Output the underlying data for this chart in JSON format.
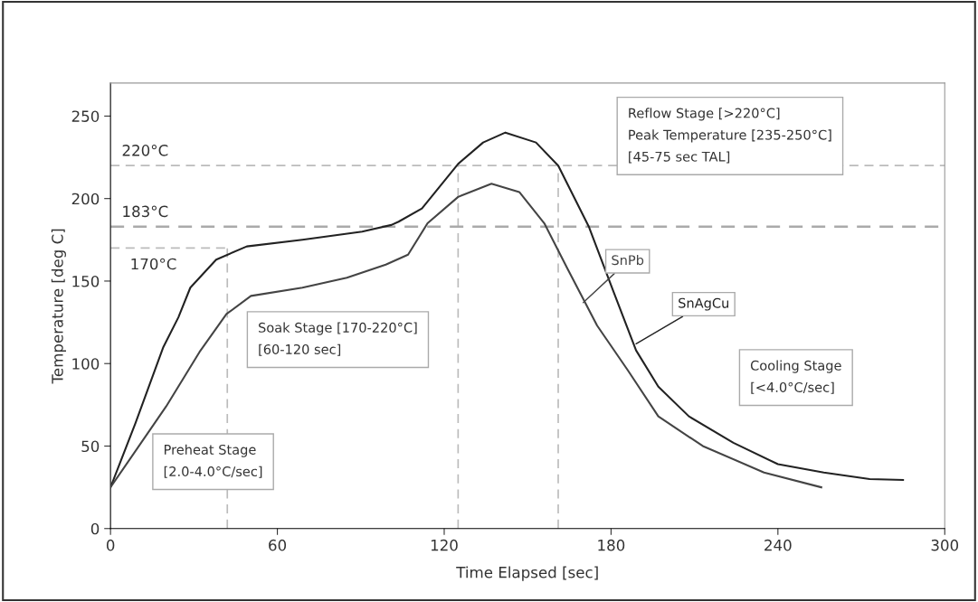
{
  "chart_data": {
    "type": "line",
    "xlabel": "Time Elapsed [sec]",
    "ylabel": "Temperature [deg C]",
    "xlim": [
      0,
      300
    ],
    "xticks": [
      0,
      60,
      120,
      180,
      240,
      300
    ],
    "ylim": [
      0,
      270
    ],
    "yticks": [
      0,
      50,
      100,
      150,
      200,
      250
    ],
    "grid": false,
    "legend": false,
    "marker": "none",
    "series": [
      {
        "name": "SnAgCu",
        "color": "#222222",
        "line_style": "solid",
        "x": [
          0,
          9,
          19,
          24.4,
          28.7,
          38,
          49,
          69,
          90.5,
          101,
          103.6,
          112,
          125,
          134,
          142,
          153,
          161,
          172,
          181,
          189,
          197,
          208,
          224,
          240,
          256.5,
          273,
          285
        ],
        "values": [
          25,
          64,
          110,
          128,
          146,
          163,
          171,
          175,
          180,
          184,
          186,
          194,
          221,
          234,
          240,
          234,
          220,
          183,
          143,
          108,
          86,
          68,
          52,
          39,
          34,
          30,
          29.5
        ]
      },
      {
        "name": "SnPb",
        "color": "#444444",
        "line_style": "solid",
        "x": [
          0,
          20,
          32,
          41.7,
          50.5,
          69,
          85,
          99,
          107,
          114,
          125,
          137,
          147,
          156,
          164.5,
          175,
          186,
          197,
          213,
          235,
          255.6
        ],
        "values": [
          25,
          74,
          107,
          130,
          141,
          146,
          152,
          160,
          166,
          185,
          201,
          209,
          204,
          185,
          157,
          123,
          96,
          68,
          50,
          34,
          25
        ]
      },
      {
        "color": "#bbbbbb",
        "line_style": "dashed",
        "x": [
          0,
          42
        ],
        "values": [
          170,
          170
        ]
      },
      {
        "color": "#bbbbbb",
        "line_style": "dashed",
        "x": [
          42,
          42
        ],
        "values": [
          0,
          170
        ]
      },
      {
        "color": "#bbbbbb",
        "line_style": "dashed",
        "x": [
          125,
          125
        ],
        "values": [
          0,
          220
        ]
      },
      {
        "color": "#bbbbbb",
        "line_style": "dashed",
        "x": [
          161,
          161
        ],
        "values": [
          0,
          220
        ]
      }
    ],
    "ref_lines": [
      {
        "axis": "y",
        "value": 220,
        "label": "220°C",
        "color": "#bbbbbb",
        "line_style": "dashed"
      },
      {
        "axis": "y",
        "value": 183,
        "label": "183°C",
        "color": "#aaaaaa",
        "line_style": "dashed"
      }
    ],
    "annotations": [
      "170°C",
      "Reflow Stage [>220°C]\nPeak Temperature [235-250°C]\n[45-75 sec TAL]",
      "Soak Stage [170-220°C]\n[60-120 sec]",
      "Preheat Stage\n[2.0-4.0°C/sec]",
      "Cooling Stage\n[<4.0°C/sec]"
    ]
  }
}
